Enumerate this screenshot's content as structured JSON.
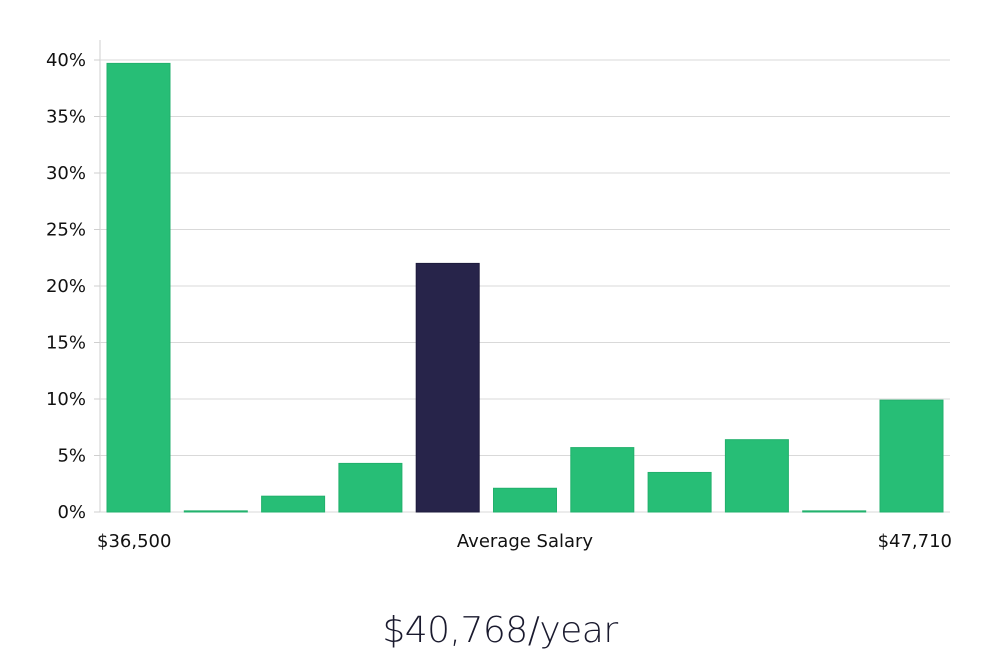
{
  "chart_data": {
    "type": "bar",
    "categories": [
      "1",
      "2",
      "3",
      "4",
      "5",
      "6",
      "7",
      "8",
      "9",
      "10",
      "11"
    ],
    "values": [
      39.7,
      0.1,
      1.4,
      4.3,
      22.0,
      2.1,
      5.7,
      3.5,
      6.4,
      0.1,
      9.9
    ],
    "highlight_index": 4,
    "ylim": [
      0,
      40
    ],
    "yticks": [
      0,
      5,
      10,
      15,
      20,
      25,
      30,
      35,
      40
    ],
    "ytick_suffix": "%",
    "grid": true,
    "colors": {
      "bar": "#27be76",
      "highlight": "#27244a",
      "grid": "#d9d9d9"
    },
    "x_labels": {
      "left": "$36,500",
      "center": "Average Salary",
      "right": "$47,710"
    }
  },
  "summary": {
    "average_salary": "$40,768/year"
  }
}
